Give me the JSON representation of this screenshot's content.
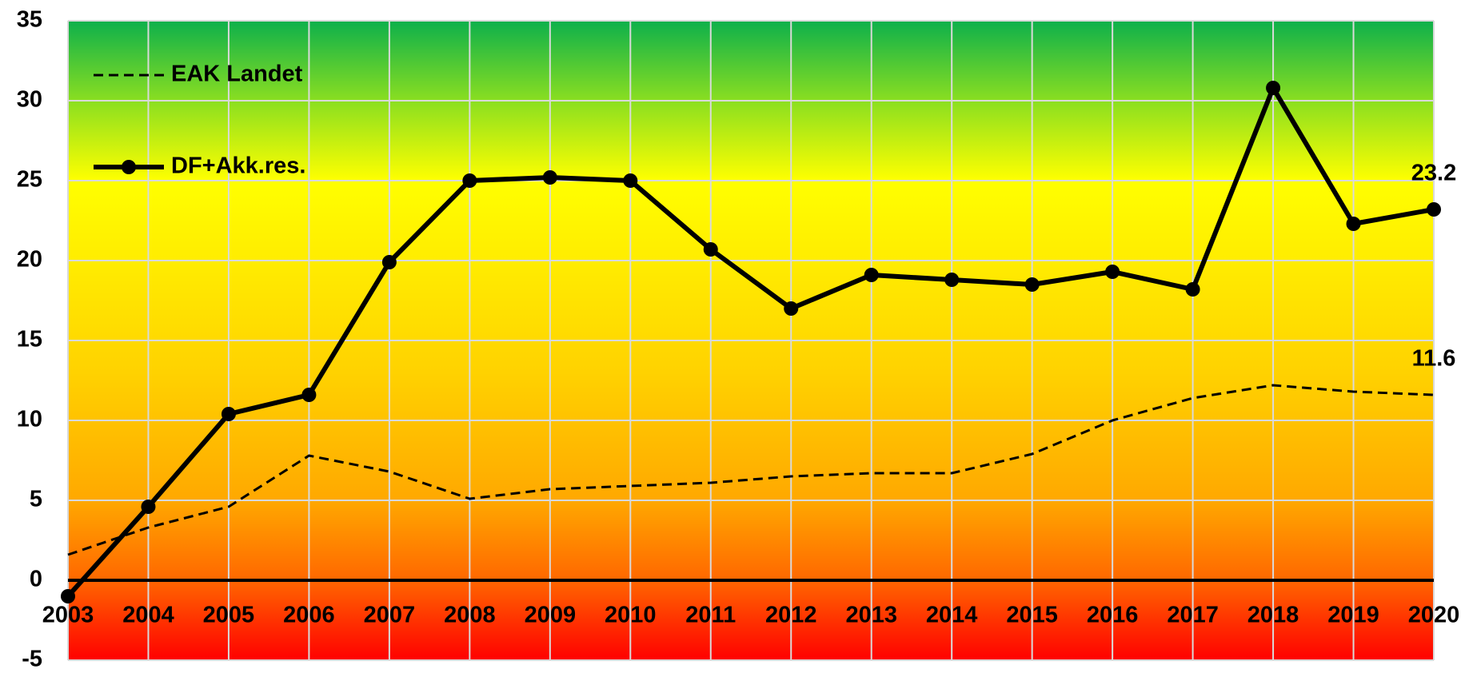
{
  "chart_data": {
    "type": "line",
    "categories": [
      "2003",
      "2004",
      "2005",
      "2006",
      "2007",
      "2008",
      "2009",
      "2010",
      "2011",
      "2012",
      "2013",
      "2014",
      "2015",
      "2016",
      "2017",
      "2018",
      "2019",
      "2020"
    ],
    "series": [
      {
        "name": "EAK Landet",
        "color": "#000000",
        "dash": "dashed",
        "marker": false,
        "values": [
          1.6,
          3.3,
          4.6,
          7.8,
          6.8,
          5.1,
          5.7,
          5.9,
          6.1,
          6.5,
          6.7,
          6.7,
          7.9,
          10.0,
          11.4,
          12.2,
          11.8,
          11.6
        ]
      },
      {
        "name": "DF+Akk.res.",
        "color": "#000000",
        "dash": "solid",
        "marker": true,
        "values": [
          -1.0,
          4.6,
          10.4,
          11.6,
          19.9,
          25.0,
          25.2,
          25.0,
          20.7,
          17.0,
          19.1,
          18.8,
          18.5,
          19.3,
          18.2,
          30.8,
          22.3,
          23.2
        ]
      }
    ],
    "data_labels": "last",
    "ylim": [
      -5,
      35
    ],
    "yticks": [
      -5,
      0,
      5,
      10,
      15,
      20,
      25,
      30,
      35
    ],
    "grid": true,
    "legend": "top-left"
  }
}
